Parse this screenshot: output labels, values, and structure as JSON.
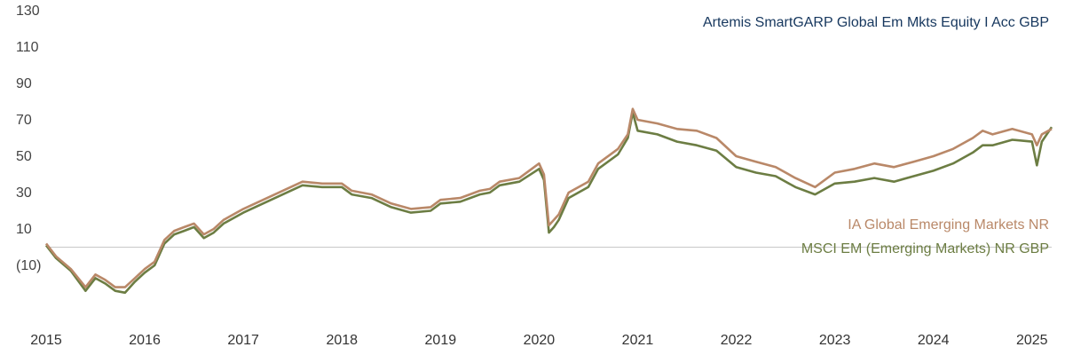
{
  "chart_data": {
    "type": "line",
    "title": "",
    "xlabel": "",
    "ylabel": "",
    "ylim": [
      -30,
      130
    ],
    "xlim": [
      2015,
      2025.2
    ],
    "yticks": [
      130,
      110,
      90,
      70,
      50,
      30,
      10,
      -10
    ],
    "ytick_labels": [
      "130",
      "110",
      "90",
      "70",
      "50",
      "30",
      "10",
      "(10)"
    ],
    "xticks": [
      2015,
      2016,
      2017,
      2018,
      2019,
      2020,
      2021,
      2022,
      2023,
      2024,
      2025
    ],
    "xtick_labels": [
      "2015",
      "2016",
      "2017",
      "2018",
      "2019",
      "2020",
      "2021",
      "2022",
      "2023",
      "2024",
      "2025"
    ],
    "grid": false,
    "baseline": 0,
    "legend_position": "right",
    "series": [
      {
        "name": "Artemis SmartGARP Global Em Mkts Equity I Acc GBP",
        "color": "#16375e",
        "x": [],
        "y": []
      },
      {
        "name": "IA Global Emerging Markets NR",
        "color": "#b98868",
        "x": [
          2015.0,
          2015.1,
          2015.25,
          2015.4,
          2015.5,
          2015.6,
          2015.7,
          2015.8,
          2015.9,
          2016.0,
          2016.1,
          2016.2,
          2016.3,
          2016.4,
          2016.5,
          2016.6,
          2016.7,
          2016.8,
          2017.0,
          2017.2,
          2017.4,
          2017.6,
          2017.8,
          2018.0,
          2018.1,
          2018.3,
          2018.5,
          2018.7,
          2018.9,
          2019.0,
          2019.2,
          2019.4,
          2019.5,
          2019.6,
          2019.8,
          2020.0,
          2020.05,
          2020.1,
          2020.15,
          2020.2,
          2020.3,
          2020.5,
          2020.6,
          2020.8,
          2020.9,
          2020.95,
          2021.0,
          2021.2,
          2021.4,
          2021.6,
          2021.8,
          2022.0,
          2022.2,
          2022.4,
          2022.6,
          2022.8,
          2023.0,
          2023.2,
          2023.4,
          2023.6,
          2023.8,
          2024.0,
          2024.2,
          2024.4,
          2024.5,
          2024.6,
          2024.8,
          2025.0,
          2025.05,
          2025.1,
          2025.2
        ],
        "y": [
          2,
          -5,
          -12,
          -22,
          -15,
          -18,
          -22,
          -22,
          -17,
          -12,
          -8,
          4,
          9,
          11,
          13,
          7,
          10,
          15,
          21,
          26,
          31,
          36,
          35,
          35,
          31,
          29,
          24,
          21,
          22,
          26,
          27,
          31,
          32,
          36,
          38,
          46,
          40,
          12,
          15,
          18,
          30,
          36,
          46,
          54,
          62,
          76,
          70,
          68,
          65,
          64,
          60,
          50,
          47,
          44,
          38,
          33,
          41,
          43,
          46,
          44,
          47,
          50,
          54,
          60,
          64,
          62,
          65,
          62,
          56,
          62,
          65
        ]
      },
      {
        "name": "MSCI EM (Emerging Markets) NR GBP",
        "color": "#6c7d43",
        "x": [
          2015.0,
          2015.1,
          2015.25,
          2015.4,
          2015.5,
          2015.6,
          2015.7,
          2015.8,
          2015.9,
          2016.0,
          2016.1,
          2016.2,
          2016.3,
          2016.4,
          2016.5,
          2016.6,
          2016.7,
          2016.8,
          2017.0,
          2017.2,
          2017.4,
          2017.6,
          2017.8,
          2018.0,
          2018.1,
          2018.3,
          2018.5,
          2018.7,
          2018.9,
          2019.0,
          2019.2,
          2019.4,
          2019.5,
          2019.6,
          2019.8,
          2020.0,
          2020.05,
          2020.1,
          2020.15,
          2020.2,
          2020.3,
          2020.5,
          2020.6,
          2020.8,
          2020.9,
          2020.95,
          2021.0,
          2021.2,
          2021.4,
          2021.6,
          2021.8,
          2022.0,
          2022.2,
          2022.4,
          2022.6,
          2022.8,
          2023.0,
          2023.2,
          2023.4,
          2023.6,
          2023.8,
          2024.0,
          2024.2,
          2024.4,
          2024.5,
          2024.6,
          2024.8,
          2025.0,
          2025.05,
          2025.1,
          2025.2
        ],
        "y": [
          1,
          -6,
          -13,
          -24,
          -17,
          -20,
          -24,
          -25,
          -19,
          -14,
          -10,
          2,
          7,
          9,
          11,
          5,
          8,
          13,
          19,
          24,
          29,
          34,
          33,
          33,
          29,
          27,
          22,
          19,
          20,
          24,
          25,
          29,
          30,
          34,
          36,
          43,
          37,
          8,
          11,
          15,
          27,
          33,
          43,
          51,
          60,
          74,
          64,
          62,
          58,
          56,
          53,
          44,
          41,
          39,
          33,
          29,
          35,
          36,
          38,
          36,
          39,
          42,
          46,
          52,
          56,
          56,
          59,
          58,
          45,
          58,
          66
        ]
      }
    ]
  }
}
